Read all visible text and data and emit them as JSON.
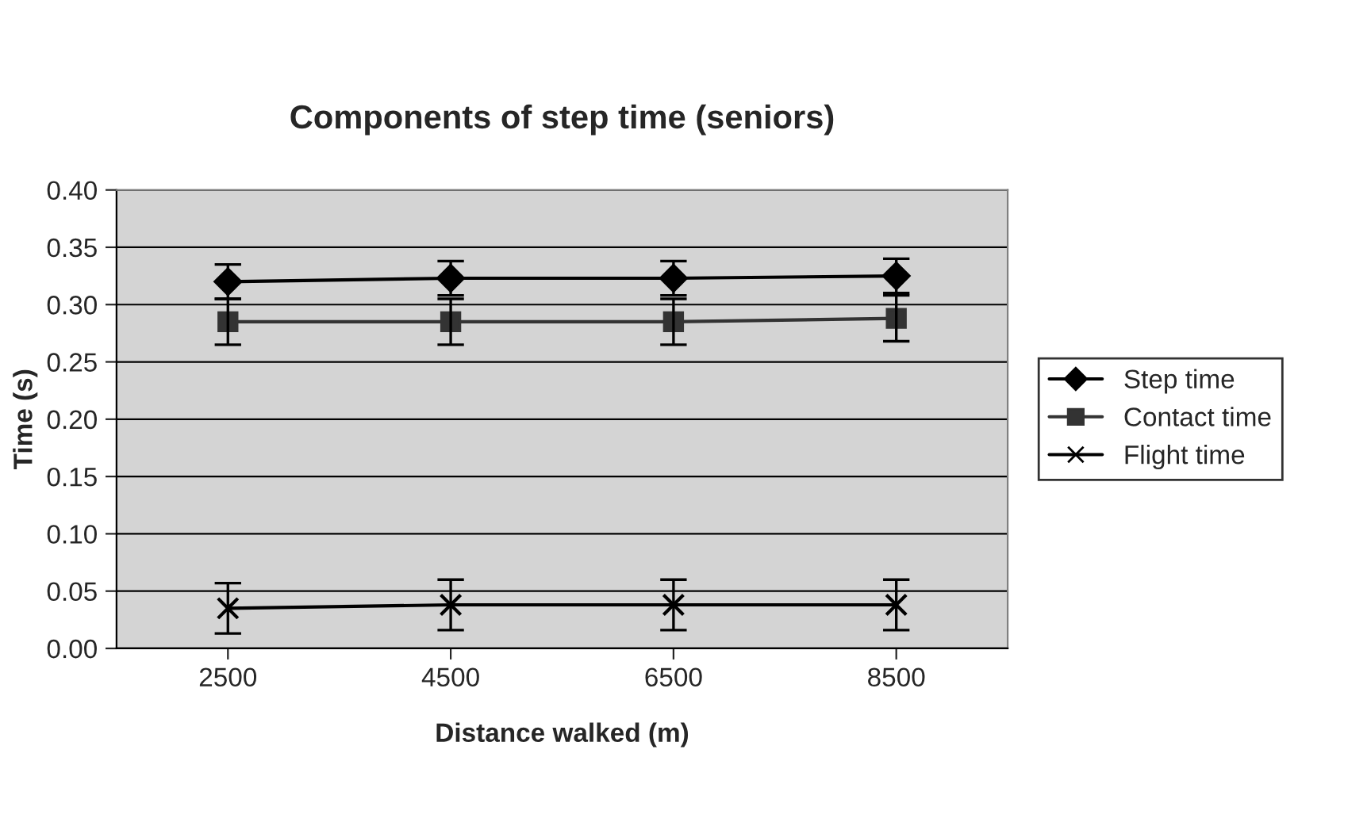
{
  "chart_data": {
    "type": "line",
    "title": "Components of step time (seniors)",
    "xlabel": "Distance walked (m)",
    "ylabel": "Time (s)",
    "categories": [
      "2500",
      "4500",
      "6500",
      "8500"
    ],
    "series": [
      {
        "name": "Step time",
        "color": "#000000",
        "marker": "diamond",
        "values": [
          0.32,
          0.323,
          0.323,
          0.325
        ],
        "errors": [
          0.015,
          0.015,
          0.015,
          0.015
        ]
      },
      {
        "name": "Contact time",
        "color": "#333333",
        "marker": "square",
        "values": [
          0.285,
          0.285,
          0.285,
          0.288
        ],
        "errors": [
          0.02,
          0.02,
          0.02,
          0.02
        ]
      },
      {
        "name": "Flight time",
        "color": "#000000",
        "marker": "cross",
        "values": [
          0.035,
          0.038,
          0.038,
          0.038
        ],
        "errors": [
          0.022,
          0.022,
          0.022,
          0.022
        ]
      }
    ],
    "ylim": [
      0,
      0.4
    ],
    "yticks": [
      {
        "value": 0,
        "label": "0.00"
      },
      {
        "value": 0.05,
        "label": "0.05"
      },
      {
        "value": 0.1,
        "label": "0.10"
      },
      {
        "value": 0.15,
        "label": "0.15"
      },
      {
        "value": 0.2,
        "label": "0.20"
      },
      {
        "value": 0.25,
        "label": "0.25"
      },
      {
        "value": 0.3,
        "label": "0.30"
      },
      {
        "value": 0.35,
        "label": "0.35"
      },
      {
        "value": 0.4,
        "label": "0.40"
      }
    ],
    "grid": "y",
    "legend": "right",
    "line_style": "solid"
  }
}
